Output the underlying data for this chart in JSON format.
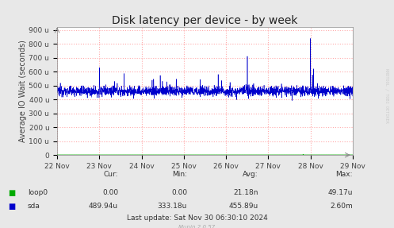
{
  "title": "Disk latency per device - by week",
  "ylabel": "Average IO Wait (seconds)",
  "background_color": "#E8E8E8",
  "plot_bg_color": "#FFFFFF",
  "grid_color": "#FFAAAA",
  "ytick_labels": [
    "0",
    "100 u",
    "200 u",
    "300 u",
    "400 u",
    "500 u",
    "600 u",
    "700 u",
    "800 u",
    "900 u"
  ],
  "ytick_values": [
    0,
    100,
    200,
    300,
    400,
    500,
    600,
    700,
    800,
    900
  ],
  "xtick_labels": [
    "22 Nov",
    "23 Nov",
    "24 Nov",
    "25 Nov",
    "26 Nov",
    "27 Nov",
    "28 Nov",
    "29 Nov"
  ],
  "sda_color": "#0000CC",
  "loop0_color": "#00AA00",
  "title_fontsize": 10,
  "axis_label_fontsize": 7,
  "tick_fontsize": 6.5,
  "legend_fontsize": 6.5,
  "watermark": "Munin 2.0.57",
  "rrdtool_text": "RRDTOOL / TOBI OETIKER",
  "footer_last_update": "Last update: Sat Nov 30 06:30:10 2024",
  "xmin": 0,
  "xmax": 604800,
  "ymin": 0,
  "ymax": 920,
  "day_seconds": 86400
}
